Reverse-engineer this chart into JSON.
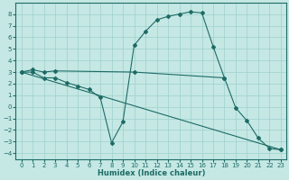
{
  "xlabel": "Humidex (Indice chaleur)",
  "bg_color": "#c5e8e4",
  "grid_color": "#9ecfcc",
  "line_color": "#1e6b65",
  "xlim": [
    -0.5,
    23.5
  ],
  "ylim": [
    -4.5,
    9.0
  ],
  "xticks": [
    0,
    1,
    2,
    3,
    4,
    5,
    6,
    7,
    8,
    9,
    10,
    11,
    12,
    13,
    14,
    15,
    16,
    17,
    18,
    19,
    20,
    21,
    22,
    23
  ],
  "yticks": [
    -4,
    -3,
    -2,
    -1,
    0,
    1,
    2,
    3,
    4,
    5,
    6,
    7,
    8
  ],
  "line1_x": [
    0,
    1,
    2,
    3,
    10,
    18
  ],
  "line1_y": [
    3.0,
    3.2,
    3.0,
    3.1,
    3.0,
    2.5
  ],
  "line2_x": [
    0,
    1,
    2,
    3,
    4,
    5,
    6,
    7,
    8,
    9,
    10,
    11,
    12,
    13,
    14,
    15,
    16,
    17,
    18,
    19,
    20,
    21,
    22,
    23
  ],
  "line2_y": [
    3.0,
    3.0,
    2.5,
    2.5,
    2.1,
    1.8,
    1.5,
    0.8,
    -3.1,
    -1.3,
    5.3,
    6.5,
    7.5,
    7.8,
    8.0,
    8.2,
    8.1,
    5.2,
    2.5,
    -0.1,
    -1.2,
    -2.7,
    -3.6,
    -3.7
  ],
  "line3_x": [
    0,
    23
  ],
  "line3_y": [
    3.0,
    -3.7
  ]
}
